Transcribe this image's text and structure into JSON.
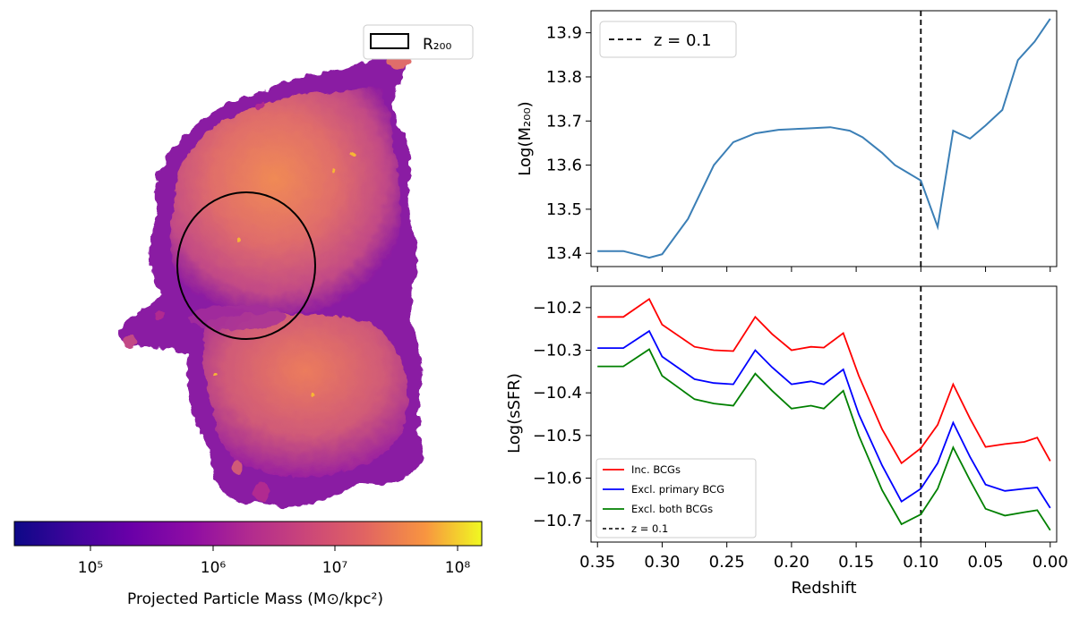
{
  "colors": {
    "m200_line": "#3b7fb6",
    "inc_bcgs": "#ff0000",
    "excl_primary": "#0000ff",
    "excl_both": "#008000",
    "vline": "#000000"
  },
  "map_panel": {
    "legend_label": "R₂₀₀",
    "colorbar_label": "Projected Particle Mass (M⊙/kpc²)",
    "colorbar_ticks": [
      "10⁵",
      "10⁶",
      "10⁷",
      "10⁸"
    ],
    "colormap": "plasma"
  },
  "chart_data": [
    {
      "type": "line",
      "panel": "top",
      "title": "",
      "xlabel": "",
      "ylabel": "Log(M₂₀₀)",
      "xlim": [
        0.355,
        -0.005
      ],
      "ylim": [
        13.37,
        13.95
      ],
      "yticks": [
        13.4,
        13.5,
        13.6,
        13.7,
        13.8,
        13.9
      ],
      "ytick_labels": [
        "13.4",
        "13.5",
        "13.6",
        "13.7",
        "13.8",
        "13.9"
      ],
      "vline": {
        "x": 0.1,
        "label": "z = 0.1",
        "style": "dashed"
      },
      "legend": [
        "z = 0.1"
      ],
      "series": [
        {
          "name": "Log(M200)",
          "x": [
            0.35,
            0.33,
            0.31,
            0.3,
            0.28,
            0.26,
            0.245,
            0.228,
            0.21,
            0.19,
            0.17,
            0.155,
            0.145,
            0.13,
            0.12,
            0.1,
            0.087,
            0.075,
            0.062,
            0.05,
            0.037,
            0.025,
            0.012,
            0.0
          ],
          "values": [
            13.405,
            13.405,
            13.39,
            13.398,
            13.478,
            13.6,
            13.652,
            13.672,
            13.68,
            13.683,
            13.686,
            13.678,
            13.663,
            13.628,
            13.6,
            13.565,
            13.46,
            13.678,
            13.66,
            13.69,
            13.725,
            13.838,
            13.88,
            13.932
          ]
        }
      ]
    },
    {
      "type": "line",
      "panel": "bottom",
      "title": "",
      "xlabel": "Redshift",
      "ylabel": "Log(sSFR)",
      "xlim": [
        0.355,
        -0.005
      ],
      "ylim": [
        -10.75,
        -10.15
      ],
      "xticks": [
        0.35,
        0.3,
        0.25,
        0.2,
        0.15,
        0.1,
        0.05,
        0.0
      ],
      "xtick_labels": [
        "0.35",
        "0.30",
        "0.25",
        "0.20",
        "0.15",
        "0.10",
        "0.05",
        "0.00"
      ],
      "yticks": [
        -10.2,
        -10.3,
        -10.4,
        -10.5,
        -10.6,
        -10.7
      ],
      "ytick_labels": [
        "−10.2",
        "−10.3",
        "−10.4",
        "−10.5",
        "−10.6",
        "−10.7"
      ],
      "vline": {
        "x": 0.1,
        "label": "z = 0.1",
        "style": "dashed"
      },
      "legend": [
        "Inc. BCGs",
        "Excl. primary BCG",
        "Excl. both BCGs",
        "z = 0.1"
      ],
      "series": [
        {
          "name": "Inc. BCGs",
          "x": [
            0.35,
            0.33,
            0.31,
            0.3,
            0.275,
            0.26,
            0.245,
            0.228,
            0.215,
            0.2,
            0.185,
            0.175,
            0.16,
            0.148,
            0.13,
            0.115,
            0.1,
            0.087,
            0.075,
            0.062,
            0.05,
            0.035,
            0.02,
            0.01,
            0.0
          ],
          "values": [
            -10.222,
            -10.222,
            -10.18,
            -10.24,
            -10.292,
            -10.3,
            -10.302,
            -10.222,
            -10.262,
            -10.3,
            -10.292,
            -10.294,
            -10.26,
            -10.36,
            -10.485,
            -10.565,
            -10.53,
            -10.475,
            -10.38,
            -10.46,
            -10.527,
            -10.52,
            -10.515,
            -10.505,
            -10.56
          ]
        },
        {
          "name": "Excl. primary BCG",
          "x": [
            0.35,
            0.33,
            0.31,
            0.3,
            0.275,
            0.26,
            0.245,
            0.228,
            0.215,
            0.2,
            0.185,
            0.175,
            0.16,
            0.148,
            0.13,
            0.115,
            0.1,
            0.087,
            0.075,
            0.062,
            0.05,
            0.035,
            0.02,
            0.01,
            0.0
          ],
          "values": [
            -10.295,
            -10.295,
            -10.255,
            -10.315,
            -10.368,
            -10.377,
            -10.38,
            -10.3,
            -10.34,
            -10.38,
            -10.373,
            -10.38,
            -10.345,
            -10.45,
            -10.57,
            -10.655,
            -10.625,
            -10.565,
            -10.47,
            -10.55,
            -10.615,
            -10.63,
            -10.625,
            -10.622,
            -10.67
          ]
        },
        {
          "name": "Excl. both BCGs",
          "x": [
            0.35,
            0.33,
            0.31,
            0.3,
            0.275,
            0.26,
            0.245,
            0.228,
            0.215,
            0.2,
            0.185,
            0.175,
            0.16,
            0.148,
            0.13,
            0.115,
            0.1,
            0.087,
            0.075,
            0.062,
            0.05,
            0.035,
            0.02,
            0.01,
            0.0
          ],
          "values": [
            -10.338,
            -10.338,
            -10.298,
            -10.36,
            -10.415,
            -10.425,
            -10.43,
            -10.355,
            -10.395,
            -10.437,
            -10.43,
            -10.437,
            -10.395,
            -10.5,
            -10.628,
            -10.708,
            -10.685,
            -10.625,
            -10.528,
            -10.605,
            -10.672,
            -10.688,
            -10.68,
            -10.675,
            -10.722
          ]
        }
      ]
    }
  ]
}
